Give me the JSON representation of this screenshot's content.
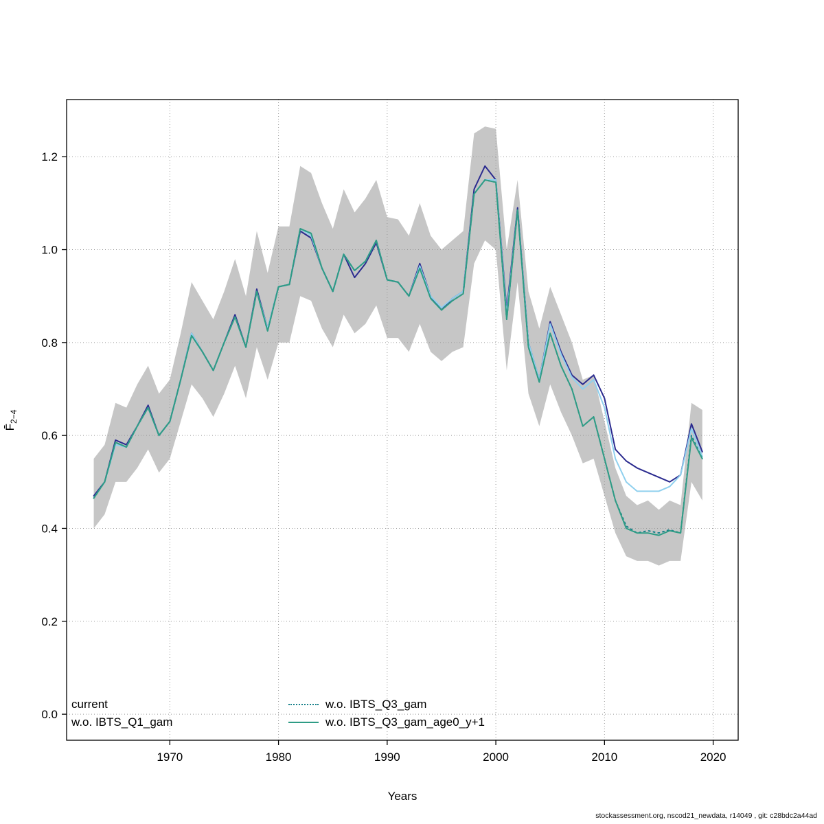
{
  "footer": "stockassessment.org, nscod21_newdata, r14049 , git: c28bdc2a44ad",
  "chart_data": {
    "type": "line",
    "title": "",
    "xlabel": "Years",
    "ylabel_main": "F̄",
    "ylabel_sub": "2−4",
    "x": [
      1963,
      1964,
      1965,
      1966,
      1967,
      1968,
      1969,
      1970,
      1971,
      1972,
      1973,
      1974,
      1975,
      1976,
      1977,
      1978,
      1979,
      1980,
      1981,
      1982,
      1983,
      1984,
      1985,
      1986,
      1987,
      1988,
      1989,
      1990,
      1991,
      1992,
      1993,
      1994,
      1995,
      1996,
      1997,
      1998,
      1999,
      2000,
      2001,
      2002,
      2003,
      2004,
      2005,
      2006,
      2007,
      2008,
      2009,
      2010,
      2011,
      2012,
      2013,
      2014,
      2015,
      2016,
      2017,
      2018,
      2019
    ],
    "xlim": [
      1960.5,
      2022.3
    ],
    "ylim": [
      -0.056,
      1.323
    ],
    "xticks": [
      1970,
      1980,
      1990,
      2000,
      2010,
      2020
    ],
    "yticks": [
      0.0,
      0.2,
      0.4,
      0.6,
      0.8,
      1.0,
      1.2
    ],
    "grid": "dotted",
    "grid_color": "#999999",
    "band": {
      "name": "confidence-band",
      "color": "#c6c6c6",
      "lower": [
        0.4,
        0.43,
        0.5,
        0.5,
        0.53,
        0.57,
        0.52,
        0.55,
        0.63,
        0.71,
        0.68,
        0.64,
        0.69,
        0.75,
        0.68,
        0.79,
        0.72,
        0.8,
        0.8,
        0.9,
        0.89,
        0.83,
        0.79,
        0.86,
        0.82,
        0.84,
        0.88,
        0.81,
        0.81,
        0.78,
        0.84,
        0.78,
        0.76,
        0.78,
        0.79,
        0.97,
        1.02,
        1.0,
        0.74,
        0.93,
        0.69,
        0.62,
        0.71,
        0.65,
        0.6,
        0.54,
        0.55,
        0.47,
        0.39,
        0.34,
        0.33,
        0.33,
        0.32,
        0.33,
        0.33,
        0.5,
        0.46
      ],
      "upper": [
        0.55,
        0.58,
        0.67,
        0.66,
        0.71,
        0.75,
        0.69,
        0.72,
        0.82,
        0.93,
        0.89,
        0.85,
        0.91,
        0.98,
        0.9,
        1.04,
        0.95,
        1.05,
        1.05,
        1.18,
        1.165,
        1.1,
        1.045,
        1.13,
        1.08,
        1.11,
        1.15,
        1.07,
        1.065,
        1.03,
        1.1,
        1.03,
        1.0,
        1.02,
        1.04,
        1.25,
        1.265,
        1.26,
        1.0,
        1.15,
        0.91,
        0.83,
        0.92,
        0.86,
        0.8,
        0.72,
        0.73,
        0.63,
        0.53,
        0.47,
        0.45,
        0.46,
        0.44,
        0.46,
        0.45,
        0.67,
        0.655
      ]
    },
    "series": [
      {
        "name": "current",
        "color": "#2b2b8f",
        "dash": "solid",
        "values": [
          0.47,
          0.5,
          0.59,
          0.58,
          0.62,
          0.665,
          0.6,
          0.63,
          0.72,
          0.82,
          0.78,
          0.74,
          0.8,
          0.86,
          0.79,
          0.915,
          0.83,
          0.92,
          0.925,
          1.04,
          1.025,
          0.96,
          0.91,
          0.99,
          0.94,
          0.97,
          1.015,
          0.935,
          0.93,
          0.9,
          0.97,
          0.9,
          0.87,
          0.895,
          0.91,
          1.13,
          1.18,
          1.15,
          0.87,
          1.09,
          0.8,
          0.72,
          0.845,
          0.78,
          0.73,
          0.71,
          0.73,
          0.68,
          0.57,
          0.545,
          0.53,
          0.52,
          0.51,
          0.5,
          0.515,
          0.625,
          0.565
        ]
      },
      {
        "name": "w.o. IBTS_Q1_gam",
        "color": "#8fd0ee",
        "dash": "solid",
        "values": [
          0.465,
          0.5,
          0.58,
          0.575,
          0.62,
          0.66,
          0.6,
          0.63,
          0.72,
          0.82,
          0.78,
          0.74,
          0.8,
          0.855,
          0.79,
          0.91,
          0.83,
          0.92,
          0.925,
          1.045,
          1.03,
          0.96,
          0.91,
          0.99,
          0.955,
          0.975,
          1.02,
          0.935,
          0.93,
          0.9,
          0.965,
          0.9,
          0.875,
          0.895,
          0.91,
          1.12,
          1.15,
          1.15,
          0.86,
          1.085,
          0.8,
          0.72,
          0.84,
          0.775,
          0.725,
          0.7,
          0.72,
          0.66,
          0.55,
          0.5,
          0.48,
          0.48,
          0.48,
          0.49,
          0.515,
          0.615,
          0.555
        ]
      },
      {
        "name": "w.o. IBTS_Q3_gam",
        "color": "#17808a",
        "dash": "dotted",
        "values": [
          0.465,
          0.5,
          0.585,
          0.575,
          0.62,
          0.66,
          0.6,
          0.63,
          0.72,
          0.815,
          0.78,
          0.74,
          0.8,
          0.855,
          0.79,
          0.91,
          0.825,
          0.92,
          0.925,
          1.045,
          1.035,
          0.96,
          0.91,
          0.99,
          0.955,
          0.975,
          1.02,
          0.935,
          0.93,
          0.9,
          0.96,
          0.895,
          0.87,
          0.89,
          0.905,
          1.12,
          1.15,
          1.145,
          0.85,
          1.085,
          0.79,
          0.715,
          0.82,
          0.75,
          0.7,
          0.62,
          0.64,
          0.55,
          0.46,
          0.405,
          0.39,
          0.395,
          0.39,
          0.397,
          0.39,
          0.6,
          0.55
        ]
      },
      {
        "name": "w.o. IBTS_Q3_gam_age0_y+1",
        "color": "#2e9c85",
        "dash": "solid",
        "values": [
          0.465,
          0.5,
          0.585,
          0.575,
          0.62,
          0.66,
          0.6,
          0.63,
          0.72,
          0.815,
          0.78,
          0.74,
          0.8,
          0.855,
          0.79,
          0.91,
          0.825,
          0.92,
          0.925,
          1.045,
          1.035,
          0.96,
          0.91,
          0.99,
          0.955,
          0.975,
          1.02,
          0.935,
          0.93,
          0.9,
          0.96,
          0.895,
          0.87,
          0.89,
          0.905,
          1.12,
          1.15,
          1.145,
          0.85,
          1.085,
          0.79,
          0.715,
          0.82,
          0.75,
          0.7,
          0.62,
          0.64,
          0.55,
          0.46,
          0.4,
          0.39,
          0.39,
          0.385,
          0.395,
          0.39,
          0.595,
          0.55
        ]
      }
    ],
    "legend": {
      "position": "bottom-left",
      "columns": [
        [
          "current",
          "w.o. IBTS_Q1_gam"
        ],
        [
          "w.o. IBTS_Q3_gam",
          "w.o. IBTS_Q3_gam_age0_y+1"
        ]
      ]
    }
  }
}
